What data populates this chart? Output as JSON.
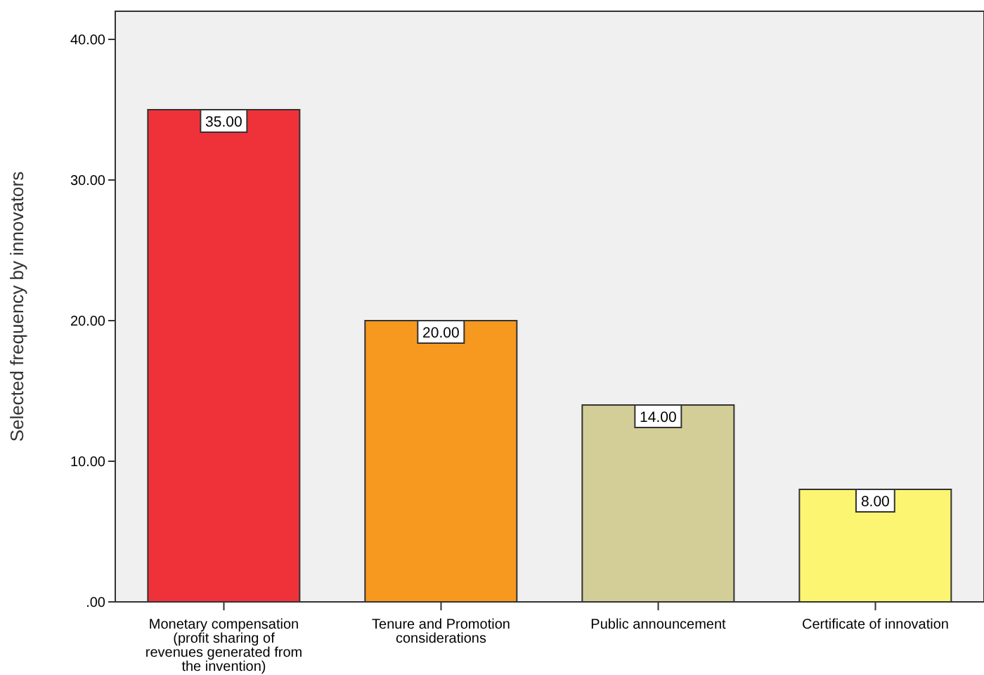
{
  "chart_data": {
    "type": "bar",
    "ylabel": "Selected frequency by innovators",
    "categories": [
      "Monetary compensation (profit sharing of revenues generated from the invention)",
      "Tenure and Promotion considerations",
      "Public announcement",
      "Certificate of innovation"
    ],
    "values": [
      35,
      20,
      14,
      8
    ],
    "colors": [
      "#ef323a",
      "#f7981f",
      "#d3cd97",
      "#fbf572"
    ],
    "value_labels": [
      "35.00",
      "20.00",
      "14.00",
      "8.00"
    ],
    "ylim": [
      0,
      42
    ],
    "yticks": [
      {
        "value": 0,
        "label": ".00"
      },
      {
        "value": 10,
        "label": "10.00"
      },
      {
        "value": 20,
        "label": "20.00"
      },
      {
        "value": 30,
        "label": "30.00"
      },
      {
        "value": 40,
        "label": "40.00"
      }
    ],
    "legend": false
  }
}
